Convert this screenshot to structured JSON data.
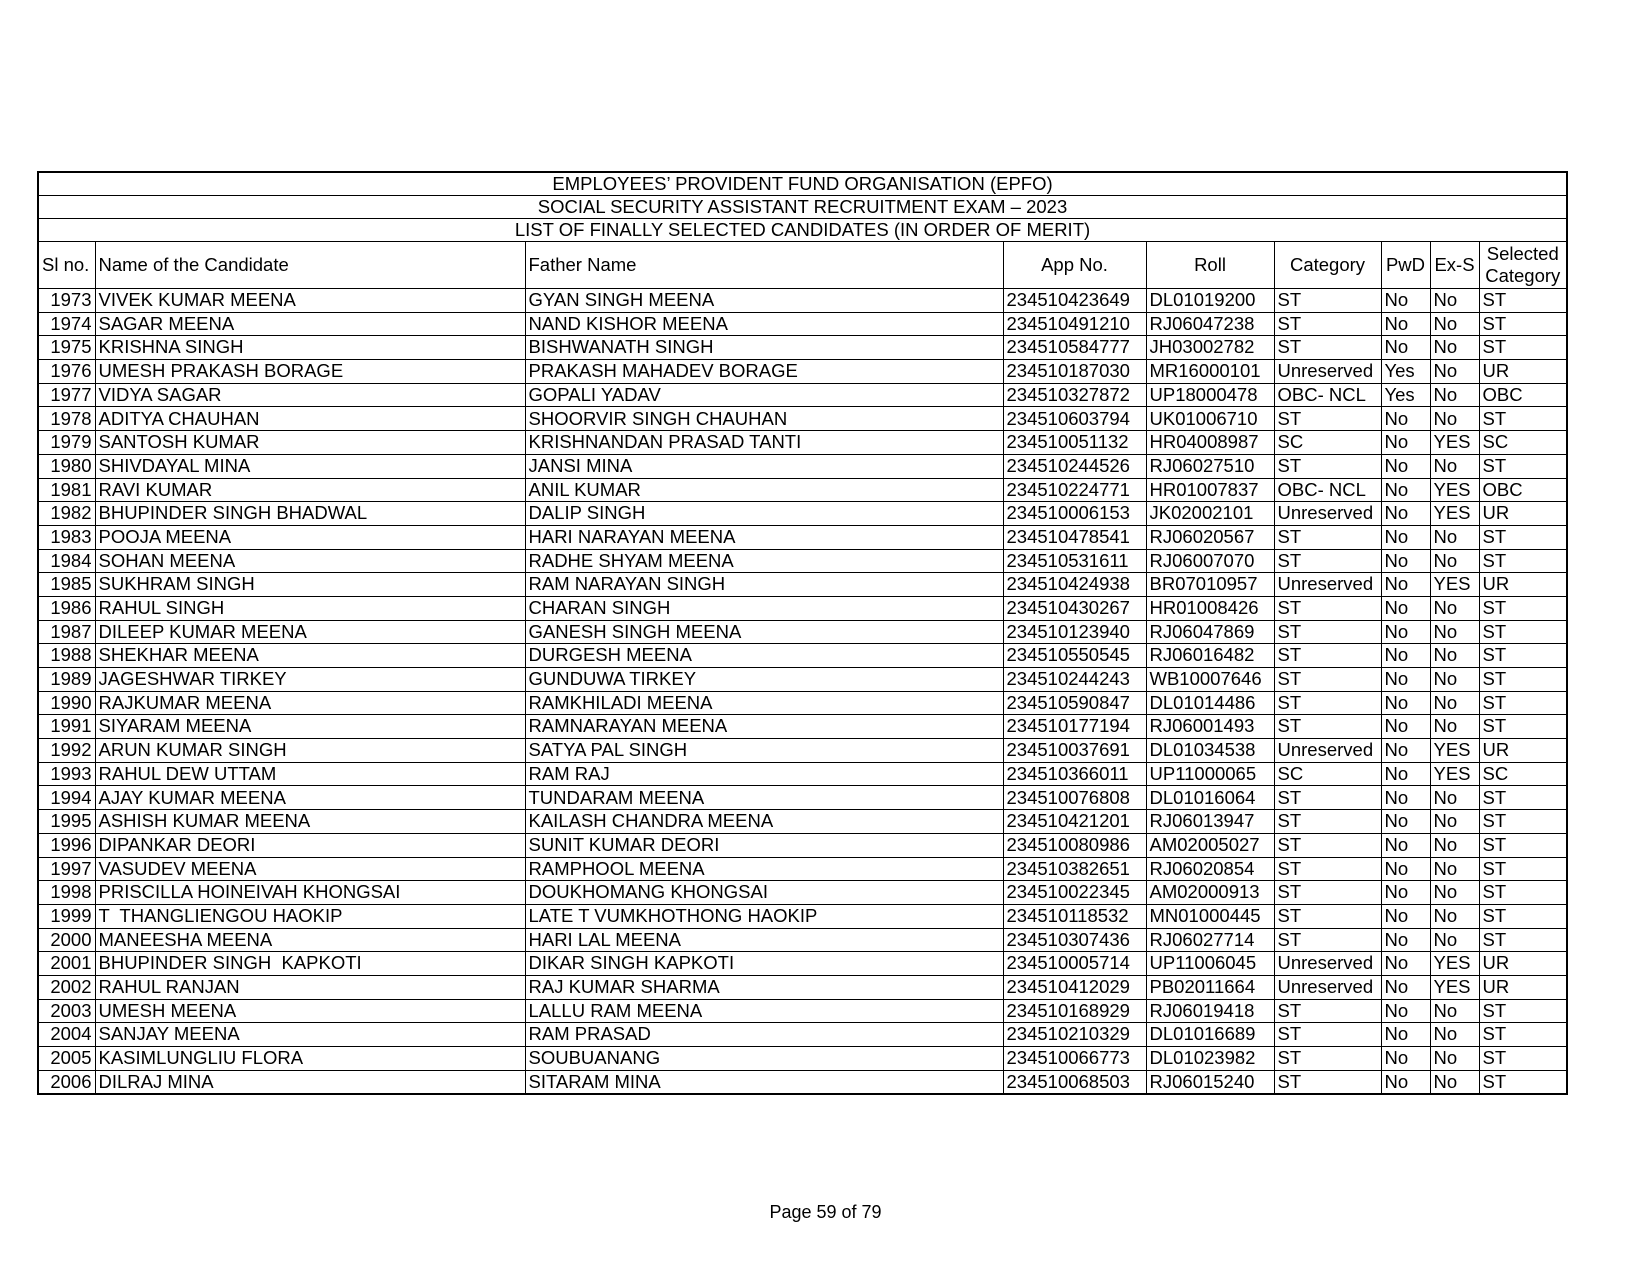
{
  "document": {
    "title_lines": [
      "EMPLOYEES’ PROVIDENT FUND ORGANISATION (EPFO)",
      "SOCIAL SECURITY ASSISTANT RECRUITMENT EXAM – 2023",
      "LIST OF FINALLY SELECTED CANDIDATES (IN ORDER OF MERIT)"
    ],
    "columns": {
      "sl": "Sl no.",
      "name": "Name of the Candidate",
      "father": "Father Name",
      "app": "App No.",
      "roll": "Roll",
      "category": "Category",
      "pwd": "PwD",
      "exs": "Ex-S",
      "selected_line1": "Selected",
      "selected_line2": "Category"
    },
    "rows": [
      [
        "1973",
        "VIVEK KUMAR MEENA",
        "GYAN SINGH MEENA",
        "234510423649",
        "DL01019200",
        "ST",
        "No",
        "No",
        "ST"
      ],
      [
        "1974",
        "SAGAR MEENA",
        "NAND KISHOR MEENA",
        "234510491210",
        "RJ06047238",
        "ST",
        "No",
        "No",
        "ST"
      ],
      [
        "1975",
        "KRISHNA SINGH",
        "BISHWANATH SINGH",
        "234510584777",
        "JH03002782",
        "ST",
        "No",
        "No",
        "ST"
      ],
      [
        "1976",
        "UMESH PRAKASH BORAGE",
        "PRAKASH MAHADEV BORAGE",
        "234510187030",
        "MR16000101",
        "Unreserved",
        "Yes",
        "No",
        "UR"
      ],
      [
        "1977",
        "VIDYA SAGAR",
        "GOPALI YADAV",
        "234510327872",
        "UP18000478",
        "OBC- NCL",
        "Yes",
        "No",
        "OBC"
      ],
      [
        "1978",
        "ADITYA CHAUHAN",
        "SHOORVIR SINGH CHAUHAN",
        "234510603794",
        "UK01006710",
        "ST",
        "No",
        "No",
        "ST"
      ],
      [
        "1979",
        "SANTOSH KUMAR",
        "KRISHNANDAN PRASAD TANTI",
        "234510051132",
        "HR04008987",
        "SC",
        "No",
        "YES",
        "SC"
      ],
      [
        "1980",
        "SHIVDAYAL MINA",
        "JANSI MINA",
        "234510244526",
        "RJ06027510",
        "ST",
        "No",
        "No",
        "ST"
      ],
      [
        "1981",
        "RAVI KUMAR",
        "ANIL KUMAR",
        "234510224771",
        "HR01007837",
        "OBC- NCL",
        "No",
        "YES",
        "OBC"
      ],
      [
        "1982",
        "BHUPINDER SINGH BHADWAL",
        "DALIP SINGH",
        "234510006153",
        "JK02002101",
        "Unreserved",
        "No",
        "YES",
        "UR"
      ],
      [
        "1983",
        "POOJA MEENA",
        "HARI NARAYAN MEENA",
        "234510478541",
        "RJ06020567",
        "ST",
        "No",
        "No",
        "ST"
      ],
      [
        "1984",
        "SOHAN MEENA",
        "RADHE SHYAM MEENA",
        "234510531611",
        "RJ06007070",
        "ST",
        "No",
        "No",
        "ST"
      ],
      [
        "1985",
        "SUKHRAM SINGH",
        "RAM NARAYAN SINGH",
        "234510424938",
        "BR07010957",
        "Unreserved",
        "No",
        "YES",
        "UR"
      ],
      [
        "1986",
        "RAHUL SINGH",
        "CHARAN SINGH",
        "234510430267",
        "HR01008426",
        "ST",
        "No",
        "No",
        "ST"
      ],
      [
        "1987",
        "DILEEP KUMAR MEENA",
        "GANESH SINGH MEENA",
        "234510123940",
        "RJ06047869",
        "ST",
        "No",
        "No",
        "ST"
      ],
      [
        "1988",
        "SHEKHAR MEENA",
        "DURGESH MEENA",
        "234510550545",
        "RJ06016482",
        "ST",
        "No",
        "No",
        "ST"
      ],
      [
        "1989",
        "JAGESHWAR TIRKEY",
        "GUNDUWA TIRKEY",
        "234510244243",
        "WB10007646",
        "ST",
        "No",
        "No",
        "ST"
      ],
      [
        "1990",
        "RAJKUMAR MEENA",
        "RAMKHILADI MEENA",
        "234510590847",
        "DL01014486",
        "ST",
        "No",
        "No",
        "ST"
      ],
      [
        "1991",
        "SIYARAM MEENA",
        "RAMNARAYAN MEENA",
        "234510177194",
        "RJ06001493",
        "ST",
        "No",
        "No",
        "ST"
      ],
      [
        "1992",
        "ARUN KUMAR SINGH",
        "SATYA PAL SINGH",
        "234510037691",
        "DL01034538",
        "Unreserved",
        "No",
        "YES",
        "UR"
      ],
      [
        "1993",
        "RAHUL DEW UTTAM",
        "RAM RAJ",
        "234510366011",
        "UP11000065",
        "SC",
        "No",
        "YES",
        "SC"
      ],
      [
        "1994",
        "AJAY KUMAR MEENA",
        "TUNDARAM MEENA",
        "234510076808",
        "DL01016064",
        "ST",
        "No",
        "No",
        "ST"
      ],
      [
        "1995",
        "ASHISH KUMAR MEENA",
        "KAILASH CHANDRA MEENA",
        "234510421201",
        "RJ06013947",
        "ST",
        "No",
        "No",
        "ST"
      ],
      [
        "1996",
        "DIPANKAR DEORI",
        "SUNIT KUMAR DEORI",
        "234510080986",
        "AM02005027",
        "ST",
        "No",
        "No",
        "ST"
      ],
      [
        "1997",
        "VASUDEV MEENA",
        "RAMPHOOL MEENA",
        "234510382651",
        "RJ06020854",
        "ST",
        "No",
        "No",
        "ST"
      ],
      [
        "1998",
        "PRISCILLA HOINEIVAH KHONGSAI",
        "DOUKHOMANG KHONGSAI",
        "234510022345",
        "AM02000913",
        "ST",
        "No",
        "No",
        "ST"
      ],
      [
        "1999",
        "T  THANGLIENGOU HAOKIP",
        "LATE T VUMKHOTHONG HAOKIP",
        "234510118532",
        "MN01000445",
        "ST",
        "No",
        "No",
        "ST"
      ],
      [
        "2000",
        "MANEESHA MEENA",
        "HARI LAL MEENA",
        "234510307436",
        "RJ06027714",
        "ST",
        "No",
        "No",
        "ST"
      ],
      [
        "2001",
        "BHUPINDER SINGH  KAPKOTI",
        "DIKAR SINGH KAPKOTI",
        "234510005714",
        "UP11006045",
        "Unreserved",
        "No",
        "YES",
        "UR"
      ],
      [
        "2002",
        "RAHUL RANJAN",
        "RAJ KUMAR SHARMA",
        "234510412029",
        "PB02011664",
        "Unreserved",
        "No",
        "YES",
        "UR"
      ],
      [
        "2003",
        "UMESH MEENA",
        "LALLU RAM MEENA",
        "234510168929",
        "RJ06019418",
        "ST",
        "No",
        "No",
        "ST"
      ],
      [
        "2004",
        "SANJAY MEENA",
        "RAM PRASAD",
        "234510210329",
        "DL01016689",
        "ST",
        "No",
        "No",
        "ST"
      ],
      [
        "2005",
        "KASIMLUNGLIU FLORA",
        "SOUBUANANG",
        "234510066773",
        "DL01023982",
        "ST",
        "No",
        "No",
        "ST"
      ],
      [
        "2006",
        "DILRAJ MINA",
        "SITARAM MINA",
        "234510068503",
        "RJ06015240",
        "ST",
        "No",
        "No",
        "ST"
      ]
    ],
    "footer": "Page 59 of 79"
  }
}
